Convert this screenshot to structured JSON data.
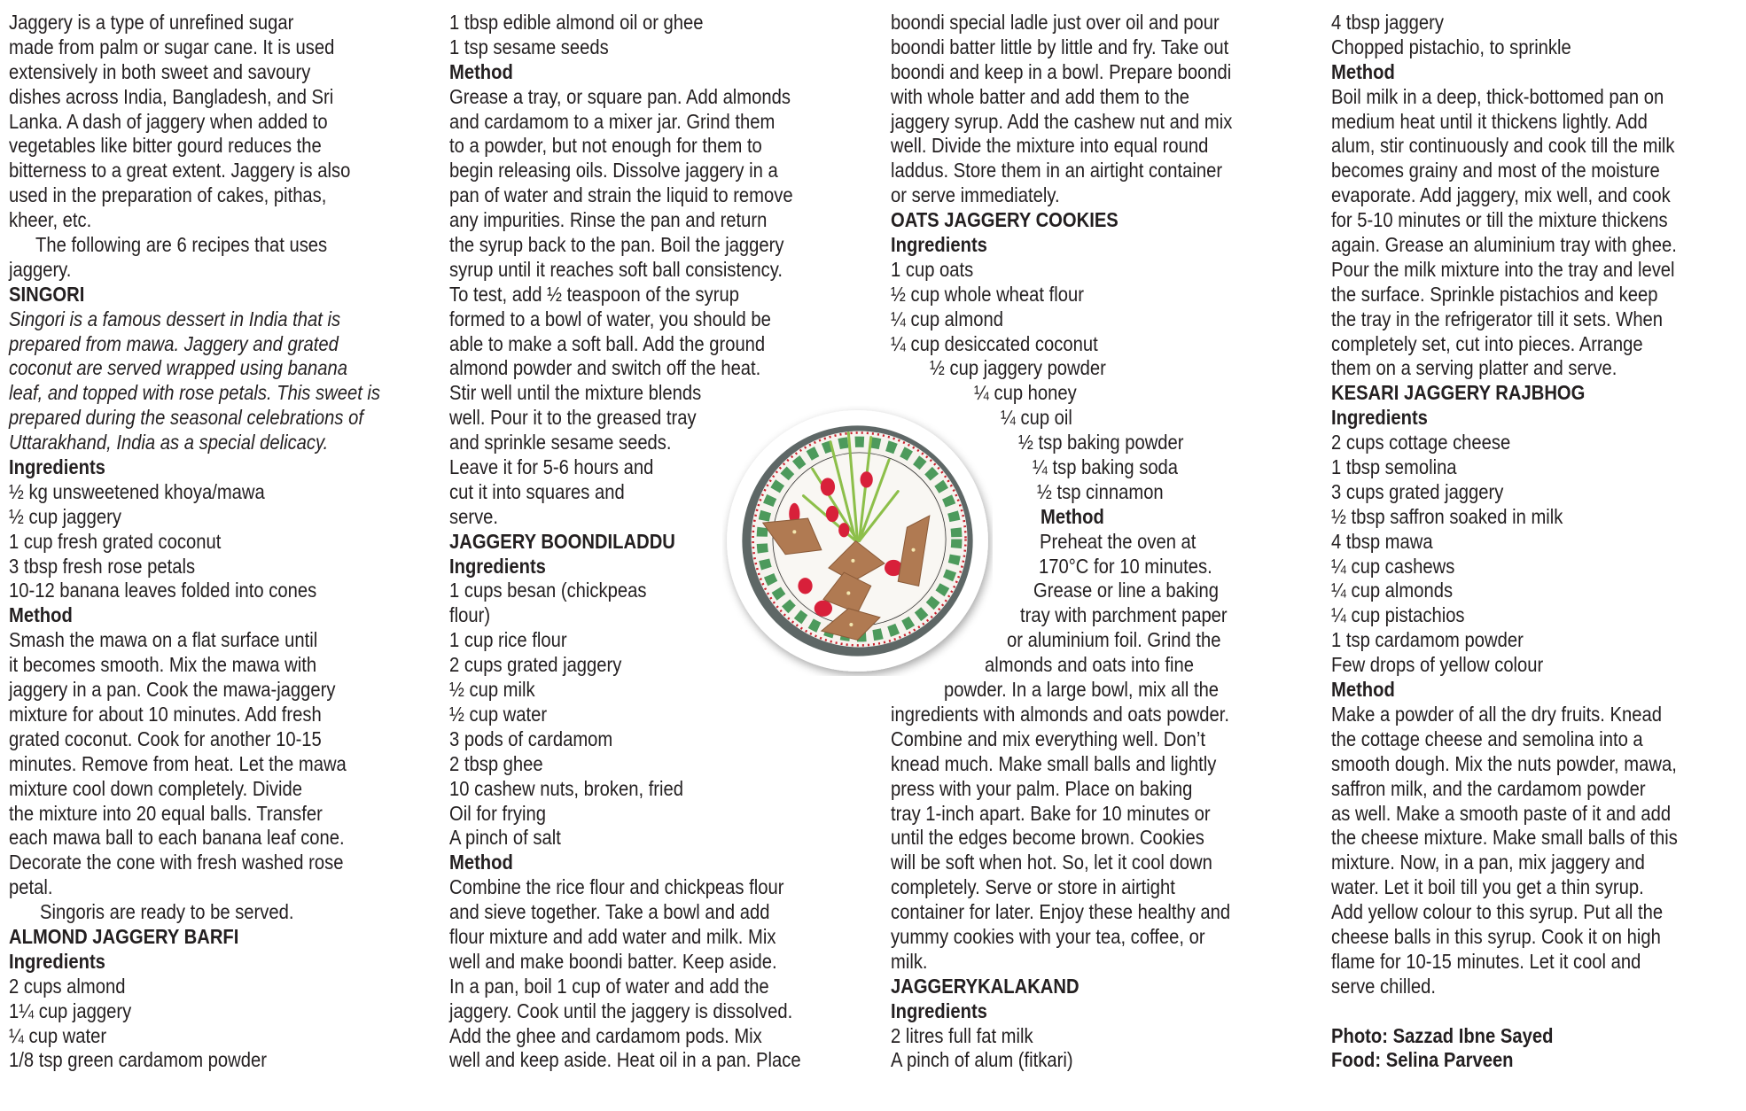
{
  "columns": [
    {
      "lines": [
        {
          "t": "Jaggery is a type of unrefined sugar",
          "s": ""
        },
        {
          "t": "made from palm or sugar cane. It is used",
          "s": ""
        },
        {
          "t": "extensively in both sweet and savoury",
          "s": ""
        },
        {
          "t": "dishes across India, Bangladesh, and Sri",
          "s": ""
        },
        {
          "t": "Lanka. A dash of jaggery when added to",
          "s": ""
        },
        {
          "t": "vegetables like bitter gourd reduces the",
          "s": ""
        },
        {
          "t": "bitterness to a great extent. Jaggery is also",
          "s": ""
        },
        {
          "t": "used in the preparation of cakes, pithas,",
          "s": ""
        },
        {
          "t": "kheer, etc.",
          "s": ""
        },
        {
          "t": "The following are 6 recipes that uses",
          "s": ""
        },
        {
          "t": "jaggery.",
          "s": ""
        },
        {
          "t": "SINGORI",
          "s": "h"
        },
        {
          "t": "Singori is a famous dessert in India that is",
          "s": "i"
        },
        {
          "t": "prepared from mawa. Jaggery and grated",
          "s": "i"
        },
        {
          "t": "coconut are served wrapped using banana",
          "s": "i"
        },
        {
          "t": "leaf, and topped with rose petals. This sweet is",
          "s": "i"
        },
        {
          "t": "prepared during the seasonal celebrations of",
          "s": "i"
        },
        {
          "t": "Uttarakhand, India as a special delicacy.",
          "s": "i"
        },
        {
          "t": "Ingredients",
          "s": "b"
        },
        {
          "t": "½ kg unsweetened khoya/mawa",
          "s": ""
        },
        {
          "t": "½ cup jaggery",
          "s": ""
        },
        {
          "t": "1 cup fresh grated coconut",
          "s": ""
        },
        {
          "t": "3 tbsp fresh rose petals",
          "s": ""
        },
        {
          "t": "10-12 banana leaves folded into cones",
          "s": ""
        },
        {
          "t": "Method",
          "s": "b"
        },
        {
          "t": "Smash the mawa on a flat surface until",
          "s": ""
        },
        {
          "t": "it becomes smooth. Mix the mawa with",
          "s": ""
        },
        {
          "t": "jaggery in a pan. Cook the mawa-jaggery",
          "s": ""
        },
        {
          "t": "mixture for about 10 minutes. Add fresh",
          "s": ""
        },
        {
          "t": "grated coconut. Cook for another 10-15",
          "s": ""
        },
        {
          "t": "minutes. Remove from heat. Let the mawa",
          "s": ""
        },
        {
          "t": "mixture cool down completely. Divide",
          "s": ""
        },
        {
          "t": "the mixture into 20 equal balls. Transfer",
          "s": ""
        },
        {
          "t": "each mawa ball to each banana leaf cone.",
          "s": ""
        },
        {
          "t": "Decorate the cone with fresh washed rose",
          "s": ""
        },
        {
          "t": "petal.",
          "s": ""
        },
        {
          "t": "Singoris are ready to be served.",
          "s": ""
        },
        {
          "t": "ALMOND JAGGERY BARFI",
          "s": "h"
        },
        {
          "t": "Ingredients",
          "s": "b"
        },
        {
          "t": "2 cups almond",
          "s": ""
        },
        {
          "t": "1¼ cup jaggery",
          "s": ""
        },
        {
          "t": "¼ cup water",
          "s": ""
        },
        {
          "t": "1/8 tsp green cardamom powder",
          "s": ""
        }
      ]
    },
    {
      "lines": [
        {
          "t": "1 tbsp edible almond oil or ghee",
          "s": ""
        },
        {
          "t": "1 tsp sesame seeds",
          "s": ""
        },
        {
          "t": "Method",
          "s": "b"
        },
        {
          "t": "Grease a tray, or square pan. Add almonds",
          "s": ""
        },
        {
          "t": "and cardamom to a mixer jar. Grind them",
          "s": ""
        },
        {
          "t": "to a powder, but not enough for them to",
          "s": ""
        },
        {
          "t": "begin releasing oils. Dissolve jaggery in a",
          "s": ""
        },
        {
          "t": "pan of water and strain the liquid to remove",
          "s": ""
        },
        {
          "t": "any impurities. Rinse the pan and return",
          "s": ""
        },
        {
          "t": "the syrup back to the pan. Boil the jaggery",
          "s": ""
        },
        {
          "t": "syrup until it reaches soft ball consistency.",
          "s": ""
        },
        {
          "t": "To test, add ½ teaspoon of the syrup",
          "s": ""
        },
        {
          "t": "formed to a bowl of water, you should be",
          "s": ""
        },
        {
          "t": "able to make a soft ball. Add the ground",
          "s": ""
        },
        {
          "t": "almond powder and switch off the heat.",
          "s": ""
        },
        {
          "t": "Stir well until the mixture blends",
          "s": ""
        },
        {
          "t": "well. Pour it to the greased tray",
          "s": ""
        },
        {
          "t": "and sprinkle sesame seeds.",
          "s": ""
        },
        {
          "t": "Leave it for 5-6 hours and",
          "s": ""
        },
        {
          "t": "cut it into squares and",
          "s": ""
        },
        {
          "t": "serve.",
          "s": ""
        },
        {
          "t": "JAGGERY BOONDILADDU",
          "s": "h"
        },
        {
          "t": "Ingredients",
          "s": "b"
        },
        {
          "t": "1 cups besan (chickpeas",
          "s": ""
        },
        {
          "t": "flour)",
          "s": ""
        },
        {
          "t": "1 cup rice flour",
          "s": ""
        },
        {
          "t": "2 cups grated jaggery",
          "s": ""
        },
        {
          "t": "½ cup milk",
          "s": ""
        },
        {
          "t": "½ cup water",
          "s": ""
        },
        {
          "t": "3 pods of cardamom",
          "s": ""
        },
        {
          "t": "2 tbsp ghee",
          "s": ""
        },
        {
          "t": "10 cashew nuts, broken, fried",
          "s": ""
        },
        {
          "t": "Oil for frying",
          "s": ""
        },
        {
          "t": "A pinch of salt",
          "s": ""
        },
        {
          "t": "Method",
          "s": "b"
        },
        {
          "t": "Combine the rice flour and chickpeas flour",
          "s": ""
        },
        {
          "t": "and sieve together. Take a bowl and add",
          "s": ""
        },
        {
          "t": "flour mixture and add water and milk. Mix",
          "s": ""
        },
        {
          "t": "well and make boondi batter. Keep aside.",
          "s": ""
        },
        {
          "t": "In a pan, boil 1 cup of water and add the",
          "s": ""
        },
        {
          "t": "jaggery. Cook until the jaggery is dissolved.",
          "s": ""
        },
        {
          "t": "Add the ghee and cardamom pods. Mix",
          "s": ""
        },
        {
          "t": "well and keep aside. Heat oil in a pan. Place",
          "s": ""
        }
      ]
    },
    {
      "lines": [
        {
          "t": "boondi special ladle just over oil and pour",
          "s": ""
        },
        {
          "t": "boondi batter little by little and fry. Take out",
          "s": ""
        },
        {
          "t": "boondi and keep in a bowl. Prepare boondi",
          "s": ""
        },
        {
          "t": "with whole batter and add them to the",
          "s": ""
        },
        {
          "t": "jaggery syrup. Add the cashew nut and mix",
          "s": ""
        },
        {
          "t": "well. Divide the mixture into equal round",
          "s": ""
        },
        {
          "t": "laddus. Store them in an airtight container",
          "s": ""
        },
        {
          "t": "or serve immediately.",
          "s": ""
        },
        {
          "t": "OATS JAGGERY COOKIES",
          "s": "h"
        },
        {
          "t": "Ingredients",
          "s": "b"
        },
        {
          "t": "1 cup oats",
          "s": ""
        },
        {
          "t": "½ cup whole wheat flour",
          "s": ""
        },
        {
          "t": "¼ cup almond",
          "s": ""
        },
        {
          "t": "¼ cup desiccated coconut",
          "s": ""
        },
        {
          "t": "½ cup jaggery powder",
          "s": ""
        },
        {
          "t": "¼ cup honey",
          "s": ""
        },
        {
          "t": "¼ cup oil",
          "s": ""
        },
        {
          "t": "½ tsp baking powder",
          "s": ""
        },
        {
          "t": "¼ tsp baking soda",
          "s": ""
        },
        {
          "t": "½ tsp cinnamon",
          "s": ""
        },
        {
          "t": "Method",
          "s": "b"
        },
        {
          "t": "Preheat the oven at",
          "s": ""
        },
        {
          "t": "170°C for 10 minutes.",
          "s": ""
        },
        {
          "t": "Grease or line a baking",
          "s": ""
        },
        {
          "t": "tray with parchment paper",
          "s": ""
        },
        {
          "t": "or aluminium foil. Grind the",
          "s": ""
        },
        {
          "t": "almonds and oats into fine",
          "s": ""
        },
        {
          "t": "powder. In a large bowl, mix all the",
          "s": ""
        },
        {
          "t": "ingredients with almonds and oats powder.",
          "s": ""
        },
        {
          "t": "Combine and mix everything well. Don’t",
          "s": ""
        },
        {
          "t": "knead much. Make small balls and lightly",
          "s": ""
        },
        {
          "t": "press with your palm. Place on baking",
          "s": ""
        },
        {
          "t": "tray 1-inch apart. Bake for 10 minutes or",
          "s": ""
        },
        {
          "t": "until the edges become brown. Cookies",
          "s": ""
        },
        {
          "t": "will be soft when hot. So, let it cool down",
          "s": ""
        },
        {
          "t": "completely. Serve or store in airtight",
          "s": ""
        },
        {
          "t": "container for later. Enjoy these healthy and",
          "s": ""
        },
        {
          "t": "yummy cookies with your tea, coffee, or",
          "s": ""
        },
        {
          "t": "milk.",
          "s": ""
        },
        {
          "t": "JAGGERYKALAKAND",
          "s": "h"
        },
        {
          "t": "Ingredients",
          "s": "b"
        },
        {
          "t": "2 litres full fat milk",
          "s": ""
        },
        {
          "t": "A pinch of alum (fitkari)",
          "s": ""
        }
      ]
    },
    {
      "lines": [
        {
          "t": "4 tbsp jaggery",
          "s": ""
        },
        {
          "t": "Chopped pistachio, to sprinkle",
          "s": ""
        },
        {
          "t": "Method",
          "s": "b"
        },
        {
          "t": "Boil milk in a deep, thick-bottomed pan on",
          "s": ""
        },
        {
          "t": "medium heat until it thickens lightly. Add",
          "s": ""
        },
        {
          "t": "alum, stir continuously and cook till the milk",
          "s": ""
        },
        {
          "t": "becomes grainy and most of the moisture",
          "s": ""
        },
        {
          "t": "evaporate. Add jaggery, mix well, and cook",
          "s": ""
        },
        {
          "t": "for 5-10 minutes or till the mixture thickens",
          "s": ""
        },
        {
          "t": "again. Grease an aluminium tray with ghee.",
          "s": ""
        },
        {
          "t": "Pour the milk mixture into the tray and level",
          "s": ""
        },
        {
          "t": "the surface. Sprinkle pistachios and keep",
          "s": ""
        },
        {
          "t": "the tray in the refrigerator till it sets. When",
          "s": ""
        },
        {
          "t": "completely set, cut into pieces. Arrange",
          "s": ""
        },
        {
          "t": "them on a serving platter and serve.",
          "s": ""
        },
        {
          "t": "KESARI JAGGERY RAJBHOG",
          "s": "h"
        },
        {
          "t": "Ingredients",
          "s": "b"
        },
        {
          "t": "2 cups cottage cheese",
          "s": ""
        },
        {
          "t": "1 tbsp semolina",
          "s": ""
        },
        {
          "t": "3 cups grated jaggery",
          "s": ""
        },
        {
          "t": "½ tbsp saffron soaked in milk",
          "s": ""
        },
        {
          "t": "4 tbsp mawa",
          "s": ""
        },
        {
          "t": "¼ cup cashews",
          "s": ""
        },
        {
          "t": "¼ cup almonds",
          "s": ""
        },
        {
          "t": "¼ cup pistachios",
          "s": ""
        },
        {
          "t": "1 tsp cardamom powder",
          "s": ""
        },
        {
          "t": "Few drops of yellow colour",
          "s": ""
        },
        {
          "t": "Method",
          "s": "b"
        },
        {
          "t": "Make a powder of all the dry fruits. Knead",
          "s": ""
        },
        {
          "t": "the cottage cheese and semolina into a",
          "s": ""
        },
        {
          "t": "smooth dough. Mix the nuts powder, mawa,",
          "s": ""
        },
        {
          "t": "saffron milk, and the cardamom powder",
          "s": ""
        },
        {
          "t": "as well. Make a smooth paste of it and add",
          "s": ""
        },
        {
          "t": "the cheese mixture. Make small balls of this",
          "s": ""
        },
        {
          "t": "mixture. Now, in a pan, mix jaggery and",
          "s": ""
        },
        {
          "t": "water. Let it boil till you get a thin syrup.",
          "s": ""
        },
        {
          "t": "Add yellow colour to this syrup. Put all the",
          "s": ""
        },
        {
          "t": "cheese balls in this syrup. Cook it on high",
          "s": ""
        },
        {
          "t": "flame for 10-15 minutes. Let it cool and",
          "s": ""
        },
        {
          "t": "serve chilled.",
          "s": ""
        },
        {
          "t": "",
          "s": ""
        },
        {
          "t": "Photo: Sazzad Ibne Sayed",
          "s": "b"
        },
        {
          "t": "Food: Selina Parveen",
          "s": "b"
        }
      ]
    }
  ],
  "photo": {
    "icon": "plate-of-jaggery-sweets-photo"
  }
}
